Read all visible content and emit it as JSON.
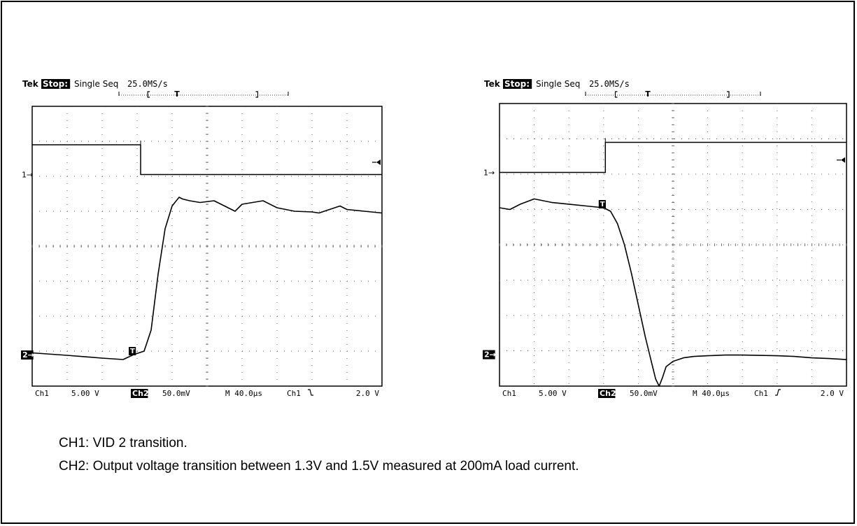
{
  "captions": {
    "ch1": "CH1: VID 2 transition.",
    "ch2": "CH2: Output voltage transition between 1.3V and 1.5V measured at 200mA load current."
  },
  "chart_data": [
    {
      "type": "line",
      "title": "",
      "header": {
        "brand": "Tek",
        "state": "Stop:",
        "mode": "Single Seq",
        "rate": "25.0MS/s"
      },
      "footer": {
        "ch1": "Ch1",
        "ch1_scale": "5.00 V",
        "ch2": "Ch2",
        "ch2_scale": "50.0mV",
        "timebase": "M 40.0µs",
        "trig_src": "Ch1",
        "trig_slope": "falling",
        "trig_level": "2.0 V"
      },
      "markers": {
        "ch1": "1→",
        "ch2": "2→",
        "trigger": "T"
      },
      "grid": {
        "divisions_x": 10,
        "divisions_y": 8,
        "visible": true
      },
      "xlim": [
        0,
        10
      ],
      "ylim": [
        0,
        8
      ],
      "series": [
        {
          "x": [
            0,
            3.1,
            3.1,
            10
          ],
          "y": [
            6.9,
            6.9,
            6.05,
            6.05
          ]
        },
        {
          "x": [
            0,
            1,
            2,
            2.6,
            2.9,
            3.2,
            3.4,
            3.6,
            3.8,
            4.0,
            4.2,
            4.3,
            4.5,
            4.8,
            5.2,
            5.5,
            5.8,
            6.0,
            6.3,
            6.6,
            7.0,
            7.5,
            8.0,
            8.2,
            8.5,
            8.8,
            9.0,
            9.5,
            10
          ],
          "y": [
            0.95,
            0.88,
            0.8,
            0.76,
            0.9,
            1.0,
            1.6,
            3.2,
            4.5,
            5.15,
            5.4,
            5.35,
            5.3,
            5.25,
            5.3,
            5.15,
            5.0,
            5.2,
            5.25,
            5.3,
            5.1,
            5.0,
            4.98,
            4.95,
            5.05,
            5.15,
            5.05,
            5.0,
            4.95
          ]
        }
      ]
    },
    {
      "type": "line",
      "title": "",
      "header": {
        "brand": "Tek",
        "state": "Stop:",
        "mode": "Single Seq",
        "rate": "25.0MS/s"
      },
      "footer": {
        "ch1": "Ch1",
        "ch1_scale": "5.00 V",
        "ch2": "Ch2",
        "ch2_scale": "50.0mV",
        "timebase": "M 40.0µs",
        "trig_src": "Ch1",
        "trig_slope": "rising",
        "trig_level": "2.0 V"
      },
      "markers": {
        "ch1": "1→",
        "ch2": "2→",
        "trigger": "T"
      },
      "grid": {
        "divisions_x": 10,
        "divisions_y": 8,
        "visible": true
      },
      "xlim": [
        0,
        10
      ],
      "ylim": [
        0,
        8
      ],
      "series": [
        {
          "x": [
            0,
            3.05,
            3.05,
            10
          ],
          "y": [
            6.05,
            6.05,
            6.9,
            6.9
          ]
        },
        {
          "x": [
            0,
            0.3,
            0.6,
            1.0,
            1.5,
            2.0,
            2.5,
            3.0,
            3.2,
            3.4,
            3.6,
            3.8,
            4.0,
            4.2,
            4.4,
            4.5,
            4.6,
            4.7,
            4.8,
            5.0,
            5.3,
            5.6,
            6.0,
            6.5,
            7.0,
            7.5,
            8.0,
            8.5,
            9.0,
            9.5,
            10
          ],
          "y": [
            5.05,
            5.0,
            5.15,
            5.3,
            5.2,
            5.15,
            5.1,
            5.05,
            4.95,
            4.6,
            4.0,
            3.2,
            2.3,
            1.4,
            0.6,
            0.2,
            0.0,
            0.25,
            0.55,
            0.7,
            0.8,
            0.84,
            0.86,
            0.88,
            0.88,
            0.87,
            0.86,
            0.84,
            0.8,
            0.78,
            0.75
          ]
        }
      ]
    }
  ]
}
